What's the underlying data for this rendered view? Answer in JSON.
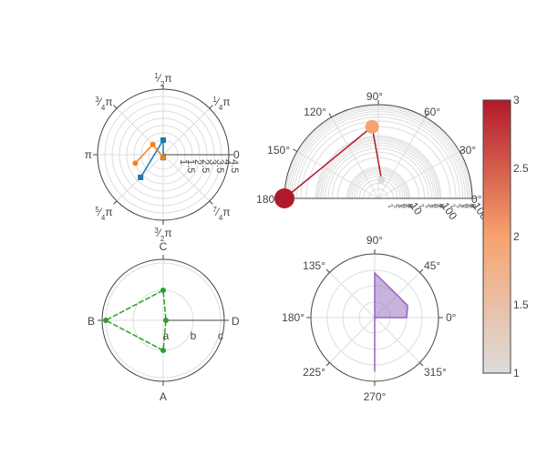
{
  "chart_data": [
    {
      "type": "polar-line",
      "angular_unit": "radians",
      "angular_tick_labels": [
        "0",
        "¼π",
        "½π",
        "¾π",
        "π",
        "5/4π",
        "3/2π",
        "7/4π"
      ],
      "radial_tick_labels": [
        "1",
        "1.5",
        "2",
        "2.5",
        "3",
        "3.5",
        "4",
        "4.5"
      ],
      "radial_range": [
        0,
        4.5
      ],
      "series": [
        {
          "theta": [
            4.71,
            1.57,
            3.93
          ],
          "r": [
            0.2,
            1.0,
            2.2
          ],
          "color": "#1f77b4"
        },
        {
          "theta": [
            4.71,
            2.36,
            3.44
          ],
          "r": [
            0.2,
            1.0,
            2.0
          ],
          "color": "#ff7f0e"
        }
      ]
    },
    {
      "type": "polar-scatter",
      "angular_unit": "degrees",
      "sector": [
        0,
        180
      ],
      "radial_type": "log",
      "angular_tick_labels": [
        "0°",
        "30°",
        "60°",
        "90°",
        "120°",
        "150°",
        "180°"
      ],
      "radial_tick_labels": [
        "2",
        "3",
        "4",
        "5",
        "6",
        "7",
        "8",
        "9",
        "10",
        "2",
        "3",
        "4",
        "5",
        "6",
        "7",
        "8",
        "9",
        "100",
        "2",
        "3",
        "4",
        "5",
        "6",
        "7",
        "8",
        "9",
        "1000"
      ],
      "radial_range": [
        1,
        1000
      ],
      "points": [
        {
          "theta": 80,
          "r": 4,
          "color_value": 1
        },
        {
          "theta": 95,
          "r": 200,
          "color_value": 2
        },
        {
          "theta": 180,
          "r": 1000,
          "color_value": 3
        }
      ],
      "line_color": "#b2182b"
    },
    {
      "type": "polar-category",
      "angular_categories": [
        "A",
        "B",
        "C",
        "D"
      ],
      "radial_categories": [
        "a",
        "b",
        "c"
      ],
      "series": [
        {
          "theta": [
            "A",
            "B",
            "C",
            "D"
          ],
          "r": [
            "b",
            "c",
            "b",
            "a"
          ],
          "color": "#2ca02c"
        }
      ]
    },
    {
      "type": "polar-area",
      "angular_unit": "degrees",
      "angular_tick_labels": [
        "0°",
        "45°",
        "90°",
        "135°",
        "180°",
        "225°",
        "270°",
        "315°"
      ],
      "series": [
        {
          "theta": [
            0,
            20,
            45,
            90,
            270
          ],
          "r": [
            0.5,
            0.55,
            0.5,
            0.7,
            0.85
          ],
          "color": "#9467bd"
        }
      ]
    }
  ],
  "colorbar": {
    "colors": [
      "#dcdcdc",
      "#f7a36e",
      "#b2182b"
    ],
    "range": [
      1,
      3
    ],
    "tick_labels": [
      "1",
      "1.5",
      "2",
      "2.5",
      "3"
    ]
  }
}
